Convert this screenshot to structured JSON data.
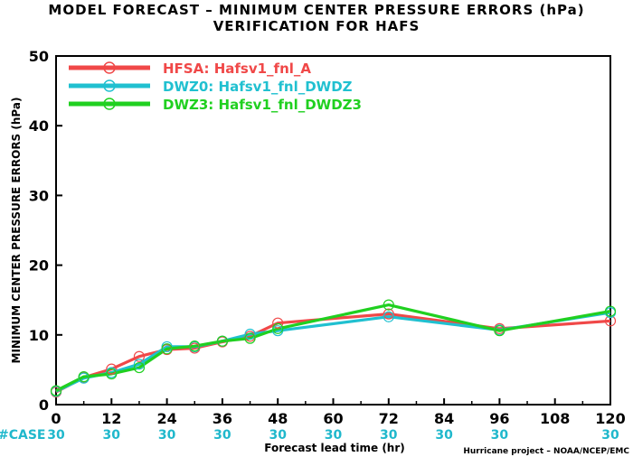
{
  "header": {
    "title": "MODEL FORECAST – MINIMUM CENTER PRESSURE ERRORS (hPa)",
    "subtitle": "VERIFICATION FOR HAFS"
  },
  "credit": "Hurricane project – NOAA/NCEP/EMC",
  "case_label": "#CASE",
  "chart_data": {
    "type": "line",
    "title": "MODEL FORECAST – MINIMUM CENTER PRESSURE ERRORS (hPa)",
    "subtitle": "VERIFICATION FOR HAFS",
    "xlabel": "Forecast lead time (hr)",
    "ylabel": "MINIMUM CENTER PRESSURE ERRORS (hPa)",
    "xlim": [
      0,
      120
    ],
    "ylim": [
      0,
      50
    ],
    "xticks": [
      0,
      12,
      24,
      36,
      48,
      60,
      72,
      84,
      96,
      108,
      120
    ],
    "yticks": [
      0,
      10,
      20,
      30,
      40,
      50
    ],
    "legend_position": "top-left",
    "grid": false,
    "cases": [
      30,
      30,
      30,
      30,
      30,
      30,
      30,
      30,
      30,
      30
    ],
    "case_x": [
      0,
      12,
      24,
      36,
      48,
      60,
      72,
      84,
      96,
      120
    ],
    "series": [
      {
        "name": "HFSA: Hafsv1_fnl_A",
        "color": "#f04848",
        "x": [
          0,
          6,
          12,
          18,
          24,
          30,
          36,
          42,
          48,
          72,
          96,
          120
        ],
        "values": [
          1.8,
          3.9,
          5.1,
          6.9,
          7.9,
          8.1,
          9.0,
          9.8,
          11.7,
          13.0,
          10.9,
          12.0
        ]
      },
      {
        "name": "DWZ0: Hafsv1_fnl_DWDZ",
        "color": "#20c0d0",
        "x": [
          0,
          6,
          12,
          18,
          24,
          30,
          36,
          42,
          48,
          72,
          96,
          120
        ],
        "values": [
          1.9,
          3.8,
          4.6,
          5.8,
          8.3,
          8.3,
          9.1,
          10.1,
          10.6,
          12.6,
          10.7,
          13.2
        ]
      },
      {
        "name": "DWZ3: Hafsv1_fnl_DWDZ3",
        "color": "#20d020",
        "x": [
          0,
          6,
          12,
          18,
          24,
          30,
          36,
          42,
          48,
          72,
          96,
          120
        ],
        "values": [
          2.0,
          4.0,
          4.4,
          5.3,
          8.0,
          8.4,
          9.1,
          9.5,
          10.9,
          14.3,
          10.6,
          13.4
        ]
      }
    ]
  }
}
